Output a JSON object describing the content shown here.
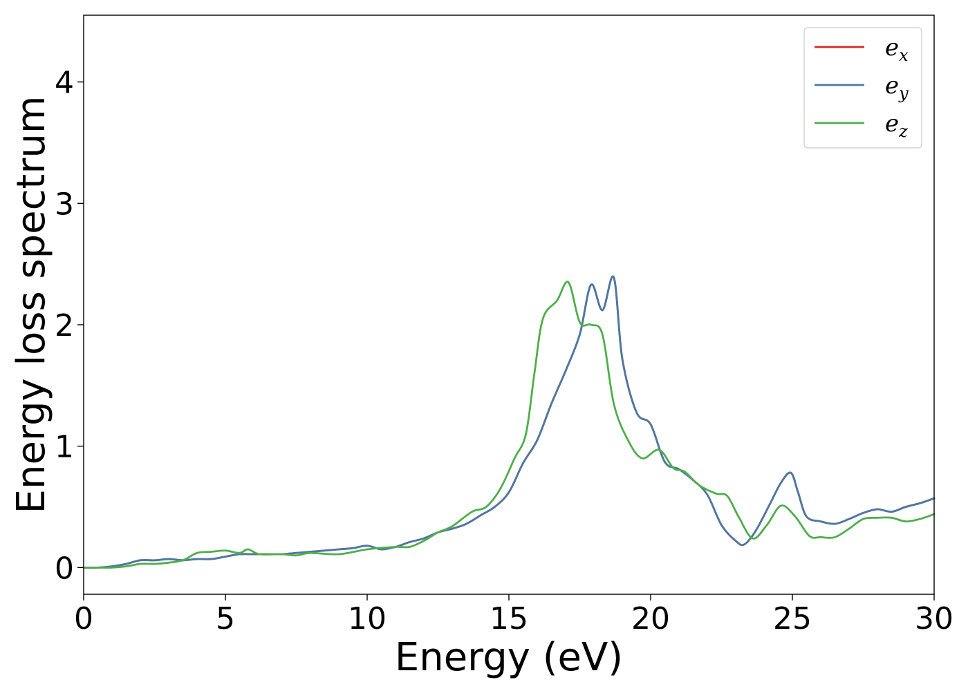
{
  "chart_data": {
    "type": "line",
    "title": "",
    "xlabel": "Energy (eV)",
    "ylabel": "Energy loss spectrum",
    "xlim": [
      0,
      30
    ],
    "ylim": [
      -0.22,
      4.55
    ],
    "xticks": [
      0,
      5,
      10,
      15,
      20,
      25,
      30
    ],
    "xtick_labels": [
      "0",
      "5",
      "10",
      "15",
      "20",
      "25",
      "30"
    ],
    "yticks": [
      0,
      1,
      2,
      3,
      4
    ],
    "ytick_labels": [
      "0",
      "1",
      "2",
      "3",
      "4"
    ],
    "grid": false,
    "legend_position": "top-right",
    "series": [
      {
        "name": "e",
        "subscript": "x",
        "color": "#d62728",
        "x": [
          0,
          0.5,
          1,
          1.5,
          2,
          2.5,
          3,
          3.5,
          4,
          4.5,
          5,
          5.5,
          6,
          6.5,
          7,
          7.5,
          8,
          8.5,
          9,
          9.5,
          10,
          10.5,
          11,
          11.5,
          12,
          12.5,
          13,
          13.5,
          14,
          14.5,
          15,
          15.5,
          16,
          16.5,
          17,
          17.5,
          17.9,
          18.3,
          18.7,
          19,
          19.5,
          20,
          20.5,
          21,
          21.5,
          22,
          22.5,
          23,
          23.3,
          23.7,
          24.2,
          24.6,
          24.95,
          25.2,
          25.5,
          26,
          26.5,
          27,
          27.5,
          28,
          28.5,
          29,
          29.5,
          30
        ],
        "y": [
          0.0,
          0.0,
          0.01,
          0.03,
          0.06,
          0.06,
          0.07,
          0.06,
          0.07,
          0.07,
          0.09,
          0.11,
          0.11,
          0.11,
          0.11,
          0.12,
          0.13,
          0.14,
          0.15,
          0.16,
          0.18,
          0.15,
          0.17,
          0.21,
          0.24,
          0.29,
          0.32,
          0.36,
          0.43,
          0.5,
          0.62,
          0.86,
          1.05,
          1.35,
          1.62,
          1.92,
          2.33,
          2.12,
          2.39,
          1.72,
          1.28,
          1.18,
          0.87,
          0.81,
          0.72,
          0.6,
          0.35,
          0.22,
          0.19,
          0.3,
          0.52,
          0.7,
          0.78,
          0.62,
          0.42,
          0.38,
          0.36,
          0.4,
          0.45,
          0.48,
          0.46,
          0.5,
          0.53,
          0.57
        ]
      },
      {
        "name": "e",
        "subscript": "y",
        "color": "#4a79a5",
        "x": [
          0,
          0.5,
          1,
          1.5,
          2,
          2.5,
          3,
          3.5,
          4,
          4.5,
          5,
          5.5,
          6,
          6.5,
          7,
          7.5,
          8,
          8.5,
          9,
          9.5,
          10,
          10.5,
          11,
          11.5,
          12,
          12.5,
          13,
          13.5,
          14,
          14.5,
          15,
          15.5,
          16,
          16.5,
          17,
          17.5,
          17.9,
          18.3,
          18.7,
          19,
          19.5,
          20,
          20.5,
          21,
          21.5,
          22,
          22.5,
          23,
          23.3,
          23.7,
          24.2,
          24.6,
          24.95,
          25.2,
          25.5,
          26,
          26.5,
          27,
          27.5,
          28,
          28.5,
          29,
          29.5,
          30
        ],
        "y": [
          0.0,
          0.0,
          0.01,
          0.03,
          0.06,
          0.06,
          0.07,
          0.06,
          0.07,
          0.07,
          0.09,
          0.11,
          0.11,
          0.11,
          0.11,
          0.12,
          0.13,
          0.14,
          0.15,
          0.16,
          0.18,
          0.15,
          0.17,
          0.21,
          0.24,
          0.29,
          0.32,
          0.36,
          0.43,
          0.5,
          0.62,
          0.86,
          1.05,
          1.35,
          1.62,
          1.92,
          2.33,
          2.12,
          2.39,
          1.72,
          1.28,
          1.18,
          0.87,
          0.81,
          0.72,
          0.6,
          0.35,
          0.22,
          0.19,
          0.3,
          0.52,
          0.7,
          0.78,
          0.62,
          0.42,
          0.38,
          0.36,
          0.4,
          0.45,
          0.48,
          0.46,
          0.5,
          0.53,
          0.57
        ]
      },
      {
        "name": "e",
        "subscript": "z",
        "color": "#4daf4a",
        "x": [
          0,
          0.5,
          1,
          1.5,
          2,
          2.5,
          3,
          3.5,
          4,
          4.5,
          5,
          5.5,
          5.8,
          6.2,
          7,
          7.5,
          8,
          9,
          10,
          11,
          11.5,
          12,
          12.5,
          13,
          13.7,
          14.2,
          14.7,
          15.2,
          15.6,
          15.9,
          16.2,
          16.7,
          17.1,
          17.5,
          17.9,
          18.3,
          18.7,
          19.2,
          19.7,
          20.3,
          20.8,
          21.2,
          21.7,
          22.3,
          22.7,
          23.1,
          23.6,
          24.1,
          24.6,
          25.1,
          25.6,
          26,
          26.5,
          27,
          27.5,
          28,
          28.5,
          29,
          29.5,
          30
        ],
        "y": [
          0.0,
          0.0,
          0.0,
          0.01,
          0.03,
          0.03,
          0.04,
          0.06,
          0.12,
          0.13,
          0.14,
          0.12,
          0.15,
          0.11,
          0.11,
          0.1,
          0.12,
          0.11,
          0.15,
          0.17,
          0.17,
          0.22,
          0.29,
          0.34,
          0.46,
          0.5,
          0.65,
          0.9,
          1.1,
          1.6,
          2.05,
          2.2,
          2.35,
          2.02,
          2.0,
          1.92,
          1.35,
          1.05,
          0.9,
          0.97,
          0.82,
          0.79,
          0.68,
          0.61,
          0.59,
          0.42,
          0.24,
          0.35,
          0.51,
          0.42,
          0.26,
          0.25,
          0.25,
          0.32,
          0.4,
          0.41,
          0.41,
          0.38,
          0.4,
          0.44
        ]
      }
    ]
  }
}
